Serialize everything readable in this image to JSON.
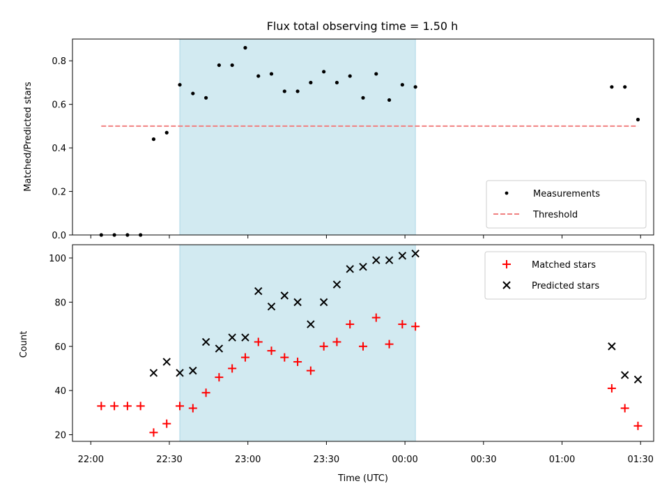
{
  "figure": {
    "title": "Flux total observing time = 1.50 h"
  },
  "chart_data": [
    {
      "type": "scatter",
      "panel": "top",
      "ylabel": "Matched/Predicted stars",
      "xlabel": "",
      "xlim": [
        "21:53",
        "01:35"
      ],
      "ylim": [
        0,
        0.9
      ],
      "yticks": [
        0.0,
        0.2,
        0.4,
        0.6,
        0.8
      ],
      "ytick_labels": [
        "0.0",
        "0.2",
        "0.4",
        "0.6",
        "0.8"
      ],
      "shaded_region": {
        "from": "22:34",
        "to": "00:04",
        "color": "#add8e6"
      },
      "legend_position": "lower-right",
      "grid": false,
      "series": [
        {
          "name": "Measurements",
          "marker": "dot",
          "color": "#000000",
          "x": [
            "22:04",
            "22:09",
            "22:14",
            "22:19",
            "22:24",
            "22:29",
            "22:34",
            "22:39",
            "22:44",
            "22:49",
            "22:54",
            "22:59",
            "23:04",
            "23:09",
            "23:14",
            "23:19",
            "23:24",
            "23:29",
            "23:34",
            "23:39",
            "23:44",
            "23:49",
            "23:54",
            "23:59",
            "00:04",
            "01:19",
            "01:24",
            "01:29"
          ],
          "y": [
            0.0,
            0.0,
            0.0,
            0.0,
            0.44,
            0.47,
            0.69,
            0.65,
            0.63,
            0.78,
            0.78,
            0.86,
            0.73,
            0.74,
            0.66,
            0.66,
            0.7,
            0.75,
            0.7,
            0.73,
            0.63,
            0.74,
            0.62,
            0.69,
            0.68,
            0.68,
            0.68,
            0.53
          ]
        },
        {
          "name": "Threshold",
          "line": "dashed",
          "color": "#f08080",
          "x": [
            "22:04",
            "01:29"
          ],
          "y": [
            0.5,
            0.5
          ]
        }
      ]
    },
    {
      "type": "scatter",
      "panel": "bottom",
      "xlabel": "Time (UTC)",
      "ylabel": "Count",
      "xlim": [
        "21:53",
        "01:35"
      ],
      "ylim": [
        17,
        106
      ],
      "yticks": [
        20,
        40,
        60,
        80,
        100
      ],
      "ytick_labels": [
        "20",
        "40",
        "60",
        "80",
        "100"
      ],
      "xticks": [
        "22:00",
        "22:30",
        "23:00",
        "23:30",
        "00:00",
        "00:30",
        "01:00",
        "01:30"
      ],
      "shaded_region": {
        "from": "22:34",
        "to": "00:04",
        "color": "#add8e6"
      },
      "legend_position": "upper-right",
      "grid": false,
      "series": [
        {
          "name": "Matched stars",
          "marker": "plus",
          "color": "#ff0000",
          "x": [
            "22:04",
            "22:09",
            "22:14",
            "22:19",
            "22:24",
            "22:29",
            "22:34",
            "22:39",
            "22:44",
            "22:49",
            "22:54",
            "22:59",
            "23:04",
            "23:09",
            "23:14",
            "23:19",
            "23:24",
            "23:29",
            "23:34",
            "23:39",
            "23:44",
            "23:49",
            "23:54",
            "23:59",
            "00:04",
            "01:19",
            "01:24",
            "01:29"
          ],
          "y": [
            33,
            33,
            33,
            33,
            21,
            25,
            33,
            32,
            39,
            46,
            50,
            55,
            62,
            58,
            55,
            53,
            49,
            60,
            62,
            70,
            60,
            73,
            61,
            70,
            69,
            41,
            32,
            24
          ]
        },
        {
          "name": "Predicted stars",
          "marker": "x",
          "color": "#000000",
          "x": [
            "22:24",
            "22:29",
            "22:34",
            "22:39",
            "22:44",
            "22:49",
            "22:54",
            "22:59",
            "23:04",
            "23:09",
            "23:14",
            "23:19",
            "23:24",
            "23:29",
            "23:34",
            "23:39",
            "23:44",
            "23:49",
            "23:54",
            "23:59",
            "00:04",
            "01:19",
            "01:24",
            "01:29"
          ],
          "y": [
            48,
            53,
            48,
            49,
            62,
            59,
            64,
            64,
            85,
            78,
            83,
            80,
            70,
            80,
            88,
            95,
            96,
            99,
            99,
            101,
            102,
            60,
            47,
            45
          ]
        }
      ]
    }
  ]
}
